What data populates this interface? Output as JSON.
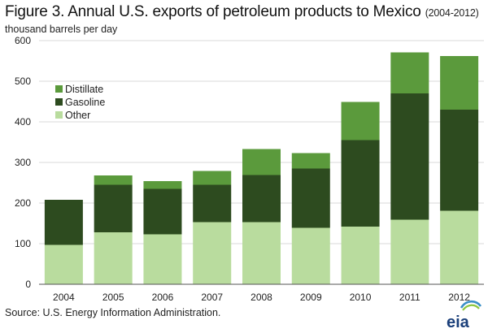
{
  "figure": {
    "title": "Figure 3. Annual U.S. exports of petroleum products to Mexico",
    "title_note": "(2004-2012)",
    "unit": "thousand barrels per day",
    "source": "Source: U.S. Energy Information Administration.",
    "logo_text": "eia"
  },
  "chart_data": {
    "type": "bar",
    "stacked": true,
    "title": "Figure 3. Annual U.S. exports of petroleum products to Mexico (2004-2012)",
    "ylabel": "thousand barrels per day",
    "xlabel": "",
    "ylim": [
      0,
      600
    ],
    "yticks": [
      0,
      100,
      200,
      300,
      400,
      500,
      600
    ],
    "grid": true,
    "legend_position": "top-left",
    "categories": [
      "2004",
      "2005",
      "2006",
      "2007",
      "2008",
      "2009",
      "2010",
      "2011",
      "2012"
    ],
    "series": [
      {
        "name": "Other",
        "color": "#b9dc9e",
        "values": [
          97,
          128,
          123,
          153,
          153,
          139,
          142,
          159,
          181
        ]
      },
      {
        "name": "Gasoline",
        "color": "#2d4b1f",
        "values": [
          111,
          117,
          112,
          92,
          116,
          146,
          213,
          311,
          249
        ]
      },
      {
        "name": "Distillate",
        "color": "#5b9a3c",
        "values": [
          0,
          23,
          19,
          34,
          64,
          38,
          94,
          101,
          132
        ]
      }
    ],
    "legend_order": [
      "Distillate",
      "Gasoline",
      "Other"
    ]
  }
}
